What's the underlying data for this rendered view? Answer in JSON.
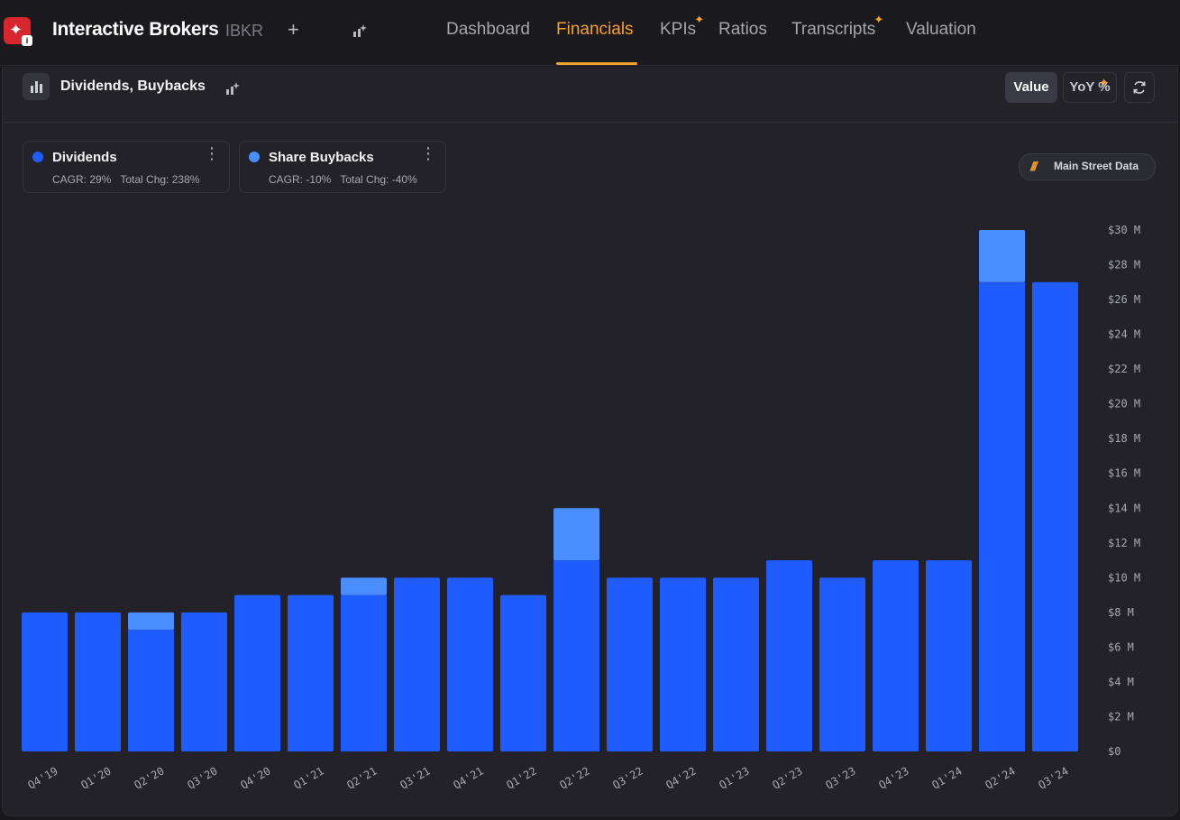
{
  "header": {
    "company": "Interactive Brokers",
    "ticker": "IBKR",
    "add_label": "+",
    "tabs": [
      {
        "label": "Dashboard",
        "active": false,
        "starred": false
      },
      {
        "label": "Financials",
        "active": true,
        "starred": false
      },
      {
        "label": "KPIs",
        "active": false,
        "starred": true
      },
      {
        "label": "Ratios",
        "active": false,
        "starred": false
      },
      {
        "label": "Transcripts",
        "active": false,
        "starred": true
      },
      {
        "label": "Valuation",
        "active": false,
        "starred": false
      }
    ],
    "accent_color": "#f5a22c"
  },
  "panel": {
    "title": "Dividends, Buybacks",
    "mode_value": "Value",
    "mode_yoy": "YoY %",
    "source": "Main Street Data"
  },
  "legend": [
    {
      "name": "Dividends",
      "cagr": "CAGR: 29%",
      "total": "Total Chg: 238%",
      "color": "#1f5cff"
    },
    {
      "name": "Share Buybacks",
      "cagr": "CAGR: -10%",
      "total": "Total Chg: -40%",
      "color": "#4a8dff"
    }
  ],
  "icons": {
    "chart_type": "bar-chart-icon",
    "spark": "sparkle-chart-icon",
    "refresh": "refresh-icon",
    "menu": "more-vertical-icon"
  },
  "chart_data": {
    "type": "bar",
    "stacked": true,
    "categories": [
      "Q4'19",
      "Q1'20",
      "Q2'20",
      "Q3'20",
      "Q4'20",
      "Q1'21",
      "Q2'21",
      "Q3'21",
      "Q4'21",
      "Q1'22",
      "Q2'22",
      "Q3'22",
      "Q4'22",
      "Q1'23",
      "Q2'23",
      "Q3'23",
      "Q4'23",
      "Q1'24",
      "Q2'24",
      "Q3'24"
    ],
    "series": [
      {
        "name": "Dividends",
        "color": "#1f5cff",
        "values": [
          8,
          8,
          7,
          8,
          9,
          9,
          9,
          10,
          10,
          9,
          11,
          10,
          10,
          10,
          11,
          10,
          11,
          11,
          27,
          27
        ]
      },
      {
        "name": "Share Buybacks",
        "color": "#4a8dff",
        "values": [
          0,
          0,
          1,
          0,
          0,
          0,
          1,
          0,
          0,
          0,
          3,
          0,
          0,
          0,
          0,
          0,
          0,
          0,
          3,
          0
        ]
      }
    ],
    "yticks": [
      "$0",
      "$2 M",
      "$4 M",
      "$6 M",
      "$8 M",
      "$10 M",
      "$12 M",
      "$14 M",
      "$16 M",
      "$18 M",
      "$20 M",
      "$22 M",
      "$24 M",
      "$26 M",
      "$28 M",
      "$30 M"
    ],
    "ylim": [
      0,
      30
    ],
    "y_unit": "$M",
    "y_axis_side": "right",
    "grid": false
  }
}
